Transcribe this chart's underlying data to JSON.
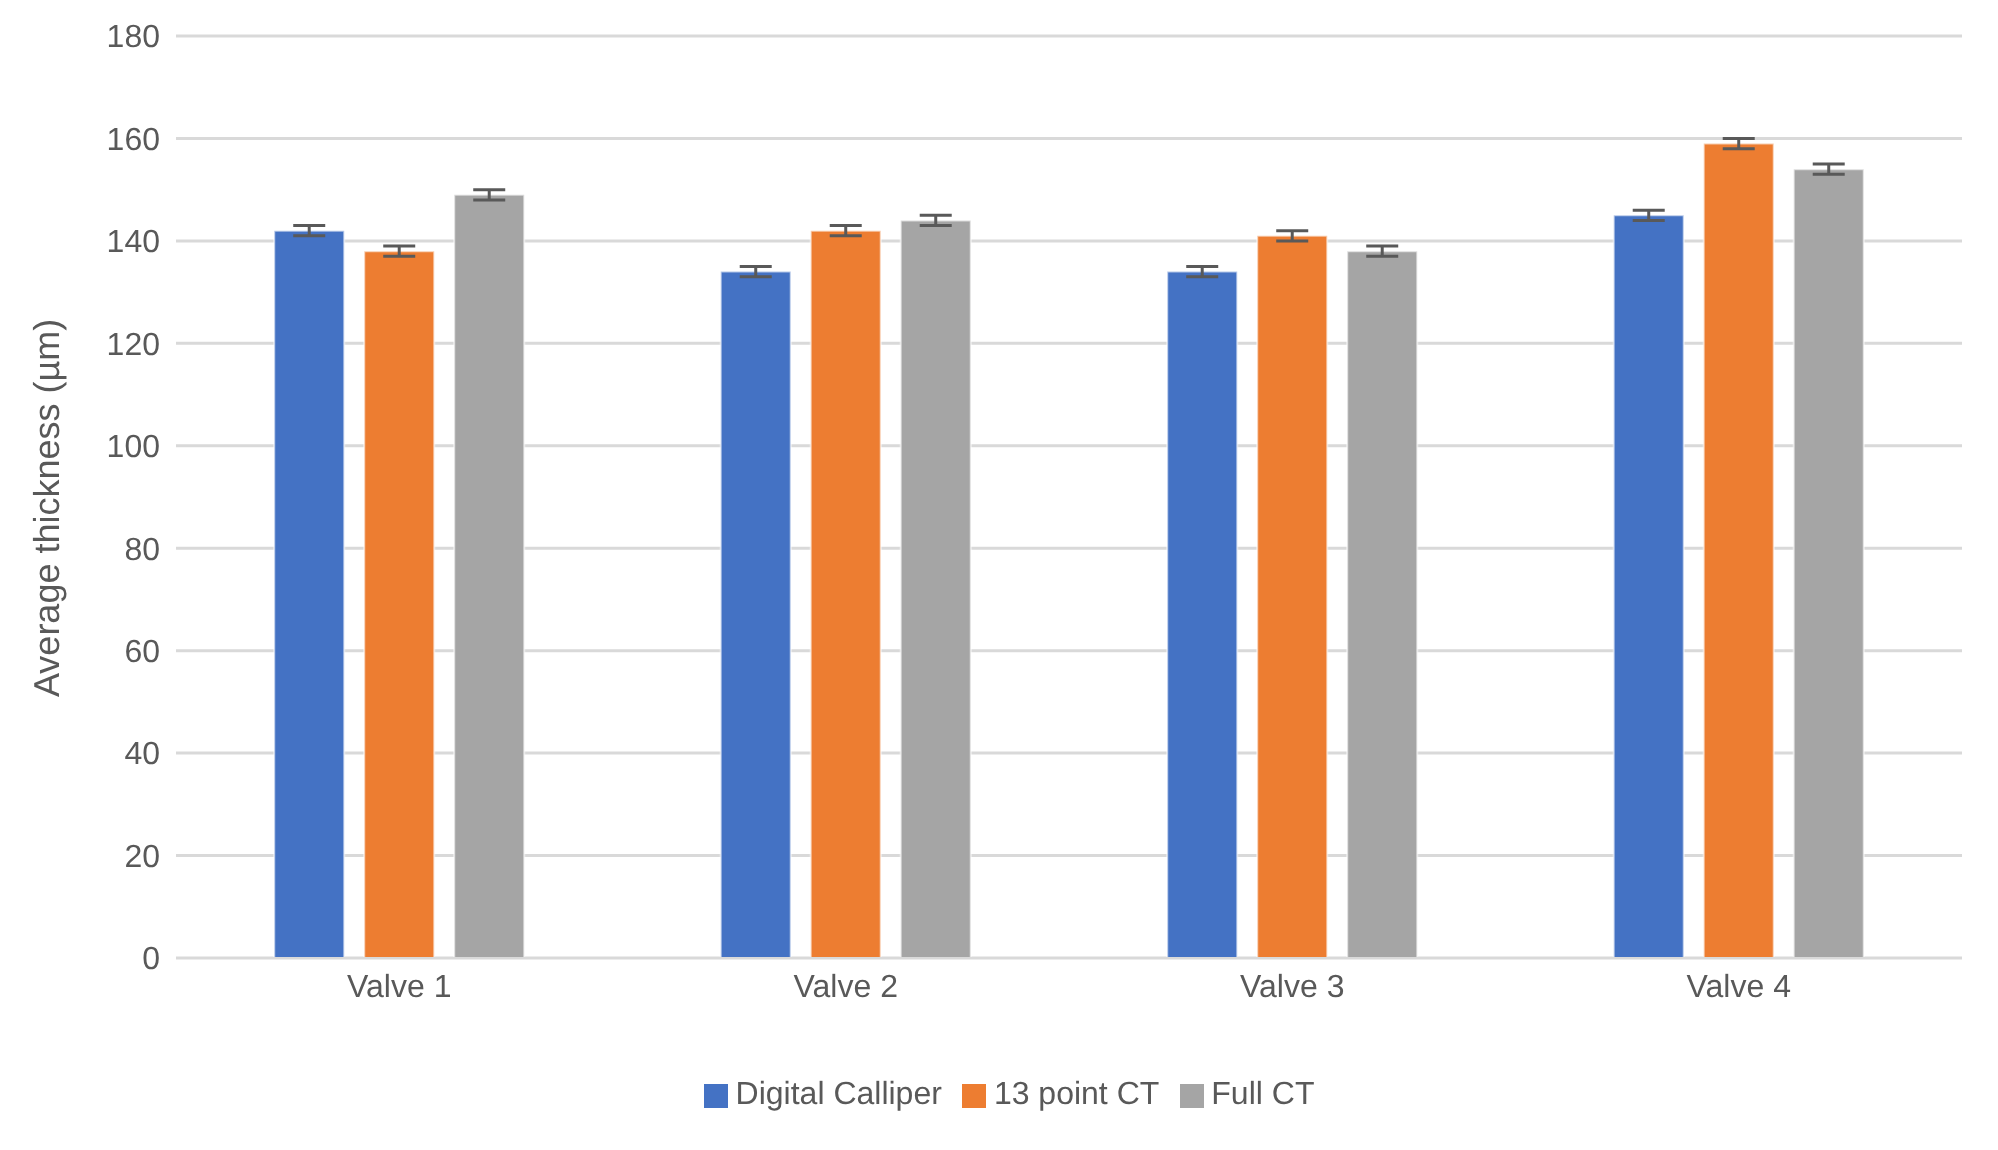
{
  "chart_data": {
    "type": "bar",
    "ylabel": "Average thickness (µm)",
    "categories": [
      "Valve 1",
      "Valve 2",
      "Valve 3",
      "Valve 4"
    ],
    "series": [
      {
        "name": "Digital Calliper",
        "color": "#4472c4",
        "values": [
          142,
          134,
          134,
          145
        ],
        "errors": [
          1,
          1,
          1,
          1
        ]
      },
      {
        "name": "13 point CT",
        "color": "#ed7d31",
        "values": [
          138,
          142,
          141,
          159
        ],
        "errors": [
          1,
          1,
          1,
          1
        ]
      },
      {
        "name": "Full CT",
        "color": "#a5a5a5",
        "values": [
          149,
          144,
          138,
          154
        ],
        "errors": [
          1,
          1,
          1,
          1
        ]
      }
    ],
    "ylim": [
      0,
      180
    ],
    "yticks": [
      0,
      20,
      40,
      60,
      80,
      100,
      120,
      140,
      160,
      180
    ],
    "grid": "y",
    "legend": "bottom"
  }
}
